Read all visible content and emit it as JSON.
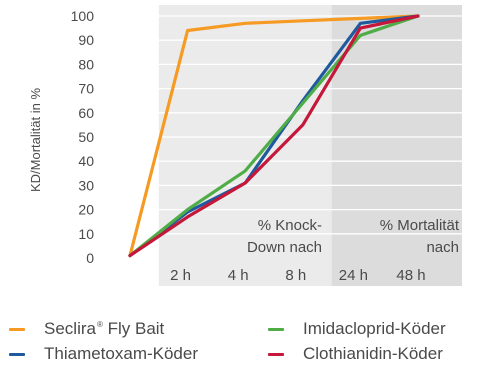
{
  "chart_data": {
    "type": "line",
    "ylabel": "KD/Mortalität in %",
    "xlabel": "",
    "ylim": [
      0,
      100
    ],
    "yticks": [
      0,
      10,
      20,
      30,
      40,
      50,
      60,
      70,
      80,
      90,
      100
    ],
    "x": [
      0,
      1,
      2,
      3,
      4,
      5
    ],
    "xtick_labels": [
      "2 h",
      "4 h",
      "8 h",
      "24 h",
      "48 h"
    ],
    "grid": true,
    "legend_position": "bottom",
    "regions": [
      {
        "label_line1": "% Knock-",
        "label_line2": "Down nach",
        "x_start": 0.5,
        "x_end": 3.5,
        "color": "#ebebeb"
      },
      {
        "label_line1": "% Mortalität",
        "label_line2": "nach",
        "x_start": 3.5,
        "x_end": 5.5,
        "color": "#dcdcdc"
      }
    ],
    "series": [
      {
        "name": "Seclira",
        "name_mark": "®",
        "name_suffix": " Fly Bait",
        "color": "#f59a23",
        "values": [
          1,
          94,
          97,
          98,
          99,
          100
        ]
      },
      {
        "name": "Thiametoxam-Köder",
        "color": "#1f5a9e",
        "values": [
          1,
          19,
          31,
          65,
          97,
          100
        ]
      },
      {
        "name": "Imidacloprid-Köder",
        "color": "#4fac47",
        "values": [
          1,
          20,
          36,
          64,
          92,
          100
        ]
      },
      {
        "name": "Clothianidin-Köder",
        "color": "#c4173a",
        "values": [
          1,
          17,
          31,
          55,
          95,
          100
        ]
      }
    ]
  }
}
